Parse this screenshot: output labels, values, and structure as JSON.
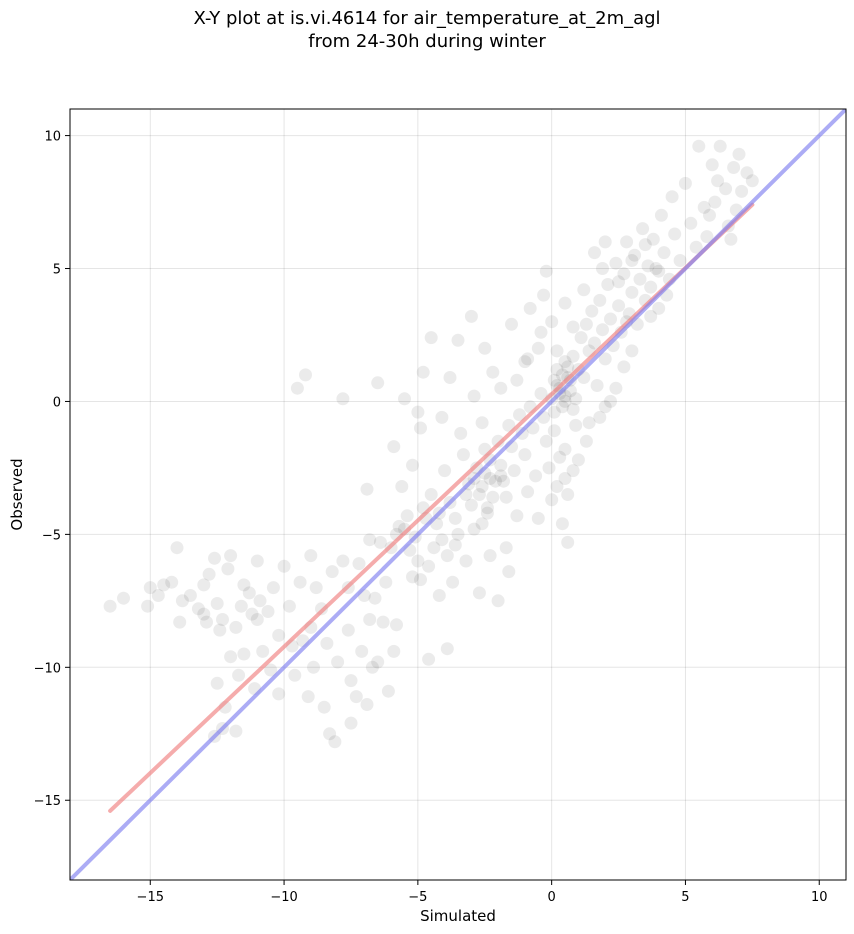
{
  "chart_data": {
    "type": "scatter",
    "title_line1": "X-Y plot at is.vi.4614 for air_temperature_at_2m_agl",
    "title_line2": "from 24-30h during winter",
    "xlabel": "Simulated",
    "ylabel": "Observed",
    "xlim": [
      -18,
      11
    ],
    "ylim": [
      -18,
      11
    ],
    "xticks": [
      -15,
      -10,
      -5,
      0,
      5,
      10
    ],
    "yticks": [
      -15,
      -10,
      -5,
      0,
      5,
      10
    ],
    "xtick_labels": [
      "−15",
      "−10",
      "−5",
      "0",
      "5",
      "10"
    ],
    "ytick_labels": [
      "−15",
      "−10",
      "−5",
      "0",
      "5",
      "10"
    ],
    "grid": true,
    "colors": {
      "points": "#000000",
      "regression_line": "#f08080",
      "identity_line": "#8080f0"
    },
    "regression_line": {
      "x": [
        -16.5,
        7.5
      ],
      "y": [
        -15.4,
        7.4
      ]
    },
    "identity_line": {
      "x": [
        -18,
        11
      ],
      "y": [
        -18,
        11
      ]
    },
    "points": [
      [
        -16.5,
        -7.7
      ],
      [
        -16.0,
        -7.4
      ],
      [
        -15.0,
        -7.0
      ],
      [
        -14.5,
        -6.9
      ],
      [
        -14.2,
        -6.8
      ],
      [
        -14.0,
        -5.5
      ],
      [
        -13.8,
        -7.5
      ],
      [
        -13.5,
        -7.3
      ],
      [
        -13.2,
        -7.8
      ],
      [
        -13.0,
        -8.0
      ],
      [
        -12.8,
        -6.5
      ],
      [
        -12.6,
        -5.9
      ],
      [
        -12.5,
        -7.6
      ],
      [
        -12.3,
        -8.2
      ],
      [
        -12.1,
        -6.3
      ],
      [
        -12.0,
        -5.8
      ],
      [
        -11.8,
        -8.5
      ],
      [
        -11.5,
        -6.9
      ],
      [
        -11.3,
        -7.2
      ],
      [
        -11.0,
        -6.0
      ],
      [
        -12.5,
        -10.6
      ],
      [
        -12.2,
        -11.5
      ],
      [
        -12.0,
        -9.6
      ],
      [
        -11.7,
        -10.3
      ],
      [
        -11.5,
        -9.5
      ],
      [
        -12.3,
        -12.3
      ],
      [
        -11.8,
        -12.4
      ],
      [
        -12.6,
        -12.6
      ],
      [
        -11.2,
        -8.0
      ],
      [
        -10.9,
        -7.5
      ],
      [
        -10.8,
        -9.4
      ],
      [
        -10.5,
        -10.1
      ],
      [
        -10.2,
        -8.8
      ],
      [
        -10.0,
        -6.2
      ],
      [
        -9.8,
        -7.7
      ],
      [
        -9.6,
        -10.3
      ],
      [
        -9.3,
        -9.0
      ],
      [
        -9.0,
        -5.8
      ],
      [
        -8.8,
        -7.0
      ],
      [
        -8.5,
        -11.5
      ],
      [
        -8.3,
        -12.5
      ],
      [
        -8.1,
        -12.8
      ],
      [
        -8.0,
        -9.8
      ],
      [
        -7.8,
        -6.0
      ],
      [
        -7.6,
        -8.6
      ],
      [
        -7.5,
        -10.5
      ],
      [
        -7.3,
        -11.1
      ],
      [
        -7.0,
        -7.3
      ],
      [
        -6.8,
        -8.2
      ],
      [
        -6.5,
        -9.8
      ],
      [
        -9.5,
        0.5
      ],
      [
        -9.2,
        1.0
      ],
      [
        -7.8,
        0.1
      ],
      [
        -6.5,
        0.7
      ],
      [
        -5.5,
        0.1
      ],
      [
        -5.0,
        -0.4
      ],
      [
        -4.8,
        1.1
      ],
      [
        -4.5,
        2.4
      ],
      [
        -3.5,
        2.3
      ],
      [
        -3.0,
        3.2
      ],
      [
        -2.5,
        2.0
      ],
      [
        -2.2,
        1.1
      ],
      [
        -1.5,
        2.9
      ],
      [
        -1.0,
        1.5
      ],
      [
        -0.8,
        3.5
      ],
      [
        -0.5,
        2.0
      ],
      [
        -0.3,
        4.0
      ],
      [
        0.0,
        3.0
      ],
      [
        -0.2,
        4.9
      ],
      [
        0.5,
        3.7
      ],
      [
        -6.0,
        -5.5
      ],
      [
        -5.8,
        -5.0
      ],
      [
        -5.5,
        -4.8
      ],
      [
        -5.3,
        -5.6
      ],
      [
        -5.0,
        -6.0
      ],
      [
        -4.8,
        -4.0
      ],
      [
        -4.5,
        -3.5
      ],
      [
        -4.3,
        -4.6
      ],
      [
        -4.1,
        -5.2
      ],
      [
        -4.0,
        -2.6
      ],
      [
        -3.8,
        -3.8
      ],
      [
        -3.6,
        -4.4
      ],
      [
        -3.5,
        -5.0
      ],
      [
        -3.3,
        -2.0
      ],
      [
        -3.1,
        -3.1
      ],
      [
        -3.0,
        -3.9
      ],
      [
        -2.9,
        -4.8
      ],
      [
        -2.8,
        -2.5
      ],
      [
        -2.6,
        -3.2
      ],
      [
        -2.5,
        -1.8
      ],
      [
        -2.4,
        -4.2
      ],
      [
        -2.3,
        -2.9
      ],
      [
        -2.2,
        -3.6
      ],
      [
        -2.0,
        -1.5
      ],
      [
        -1.9,
        -2.4
      ],
      [
        -1.8,
        -3.0
      ],
      [
        -1.7,
        -5.5
      ],
      [
        -1.6,
        -0.9
      ],
      [
        -1.5,
        -1.7
      ],
      [
        -1.4,
        -2.6
      ],
      [
        -1.3,
        -4.3
      ],
      [
        -1.2,
        -0.5
      ],
      [
        -1.1,
        -1.2
      ],
      [
        -1.0,
        -2.0
      ],
      [
        -0.9,
        -3.4
      ],
      [
        -0.8,
        -0.2
      ],
      [
        -0.7,
        -1.0
      ],
      [
        -0.6,
        -2.8
      ],
      [
        -0.5,
        -4.4
      ],
      [
        -0.4,
        0.3
      ],
      [
        -0.3,
        -0.6
      ],
      [
        -0.2,
        -1.5
      ],
      [
        -0.1,
        -2.5
      ],
      [
        0.0,
        0.1
      ],
      [
        0.1,
        -0.4
      ],
      [
        0.2,
        0.6
      ],
      [
        0.3,
        0.3
      ],
      [
        0.4,
        1.0
      ],
      [
        0.5,
        0.2
      ],
      [
        0.6,
        1.3
      ],
      [
        0.2,
        -3.2
      ],
      [
        0.4,
        -4.6
      ],
      [
        0.6,
        -5.3
      ],
      [
        0.6,
        -3.5
      ],
      [
        0.8,
        -2.6
      ],
      [
        0.3,
        -2.1
      ],
      [
        0.1,
        -1.1
      ],
      [
        0.0,
        -3.7
      ],
      [
        0.5,
        -1.8
      ],
      [
        0.9,
        -0.9
      ],
      [
        0.7,
        0.8
      ],
      [
        0.8,
        1.7
      ],
      [
        1.0,
        1.2
      ],
      [
        1.1,
        2.4
      ],
      [
        1.2,
        0.9
      ],
      [
        1.3,
        2.9
      ],
      [
        1.4,
        1.9
      ],
      [
        1.5,
        3.4
      ],
      [
        1.6,
        2.2
      ],
      [
        1.7,
        0.6
      ],
      [
        1.8,
        3.8
      ],
      [
        1.9,
        2.7
      ],
      [
        2.0,
        1.6
      ],
      [
        2.1,
        4.4
      ],
      [
        2.2,
        3.1
      ],
      [
        2.3,
        2.1
      ],
      [
        2.4,
        5.2
      ],
      [
        2.5,
        3.6
      ],
      [
        2.6,
        2.6
      ],
      [
        2.7,
        4.8
      ],
      [
        2.8,
        6.0
      ],
      [
        2.9,
        3.3
      ],
      [
        3.0,
        4.1
      ],
      [
        3.1,
        5.5
      ],
      [
        3.2,
        2.9
      ],
      [
        3.3,
        4.6
      ],
      [
        3.4,
        6.5
      ],
      [
        3.5,
        3.8
      ],
      [
        3.6,
        5.1
      ],
      [
        3.7,
        4.3
      ],
      [
        3.8,
        6.1
      ],
      [
        3.9,
        5.0
      ],
      [
        4.0,
        3.5
      ],
      [
        4.1,
        7.0
      ],
      [
        4.2,
        5.6
      ],
      [
        4.4,
        4.6
      ],
      [
        4.5,
        7.7
      ],
      [
        4.6,
        6.3
      ],
      [
        4.8,
        5.3
      ],
      [
        5.0,
        8.2
      ],
      [
        5.2,
        6.7
      ],
      [
        5.4,
        5.8
      ],
      [
        5.5,
        9.6
      ],
      [
        5.7,
        7.3
      ],
      [
        5.8,
        6.2
      ],
      [
        6.0,
        8.9
      ],
      [
        6.1,
        7.5
      ],
      [
        6.3,
        9.6
      ],
      [
        6.5,
        8.0
      ],
      [
        6.6,
        6.6
      ],
      [
        6.8,
        8.8
      ],
      [
        6.9,
        7.2
      ],
      [
        7.0,
        9.3
      ],
      [
        7.1,
        7.9
      ],
      [
        7.3,
        8.6
      ],
      [
        7.5,
        8.3
      ],
      [
        6.7,
        6.1
      ],
      [
        6.2,
        8.3
      ],
      [
        5.9,
        7.0
      ],
      [
        4.3,
        4.0
      ],
      [
        -6.2,
        -6.8
      ],
      [
        -6.8,
        -5.2
      ],
      [
        -7.2,
        -6.1
      ],
      [
        -7.6,
        -7.0
      ],
      [
        -8.2,
        -6.4
      ],
      [
        -8.6,
        -7.8
      ],
      [
        -9.0,
        -8.5
      ],
      [
        -9.4,
        -6.8
      ],
      [
        -10.4,
        -7.0
      ],
      [
        -11.0,
        -8.2
      ],
      [
        -5.9,
        -9.4
      ],
      [
        -6.3,
        -8.3
      ],
      [
        -6.6,
        -7.4
      ],
      [
        -5.2,
        -6.6
      ],
      [
        -4.6,
        -6.2
      ],
      [
        -4.2,
        -7.3
      ],
      [
        -3.7,
        -6.8
      ],
      [
        -3.2,
        -6.0
      ],
      [
        -2.7,
        -7.2
      ],
      [
        -3.9,
        -9.3
      ],
      [
        -4.6,
        -9.7
      ],
      [
        -2.0,
        -7.5
      ],
      [
        -1.6,
        -6.4
      ],
      [
        -2.3,
        -5.8
      ],
      [
        -5.6,
        -3.2
      ],
      [
        -6.9,
        -3.3
      ],
      [
        -5.9,
        -1.7
      ],
      [
        -5.2,
        -2.4
      ],
      [
        -4.9,
        -1.0
      ],
      [
        -4.1,
        -0.6
      ],
      [
        1.0,
        -2.2
      ],
      [
        0.5,
        -2.9
      ],
      [
        1.3,
        -1.5
      ],
      [
        1.8,
        -0.6
      ],
      [
        2.0,
        -0.2
      ],
      [
        2.4,
        0.5
      ],
      [
        2.7,
        1.3
      ],
      [
        3.0,
        1.9
      ],
      [
        2.2,
        0.0
      ],
      [
        1.4,
        -0.8
      ],
      [
        -1.9,
        0.5
      ],
      [
        -2.6,
        -0.8
      ],
      [
        -3.4,
        -1.2
      ],
      [
        -3.8,
        0.9
      ],
      [
        -2.9,
        0.2
      ],
      [
        -1.3,
        0.8
      ],
      [
        -0.9,
        1.6
      ],
      [
        -0.4,
        2.6
      ],
      [
        0.2,
        1.9
      ],
      [
        0.8,
        2.8
      ],
      [
        3.5,
        5.9
      ],
      [
        3.0,
        5.3
      ],
      [
        2.5,
        4.5
      ],
      [
        4.0,
        4.9
      ],
      [
        3.7,
        3.2
      ],
      [
        1.6,
        5.6
      ],
      [
        2.0,
        6.0
      ],
      [
        1.2,
        4.2
      ],
      [
        1.9,
        5.0
      ],
      [
        2.8,
        3.0
      ],
      [
        0.3,
        0.5
      ],
      [
        0.5,
        0.0
      ],
      [
        0.7,
        0.4
      ],
      [
        0.4,
        -0.2
      ],
      [
        0.6,
        0.9
      ],
      [
        0.2,
        1.2
      ],
      [
        0.9,
        0.1
      ],
      [
        0.1,
        0.8
      ],
      [
        0.8,
        -0.3
      ],
      [
        0.5,
        1.5
      ],
      [
        -2.5,
        -2.7
      ],
      [
        -2.7,
        -3.5
      ],
      [
        -2.3,
        -2.2
      ],
      [
        -2.1,
        -3.0
      ],
      [
        -2.9,
        -2.9
      ],
      [
        -2.4,
        -4.0
      ],
      [
        -1.9,
        -2.8
      ],
      [
        -3.2,
        -3.5
      ],
      [
        -2.6,
        -4.6
      ],
      [
        -1.7,
        -3.6
      ],
      [
        -4.2,
        -4.2
      ],
      [
        -4.4,
        -5.5
      ],
      [
        -4.7,
        -4.4
      ],
      [
        -3.9,
        -5.8
      ],
      [
        -5.1,
        -5.1
      ],
      [
        -5.4,
        -4.3
      ],
      [
        -3.6,
        -5.4
      ],
      [
        -4.9,
        -6.7
      ],
      [
        -5.7,
        -4.7
      ],
      [
        -6.4,
        -5.3
      ],
      [
        -13.0,
        -6.9
      ],
      [
        -13.9,
        -8.3
      ],
      [
        -14.7,
        -7.3
      ],
      [
        -15.1,
        -7.7
      ],
      [
        -12.9,
        -8.3
      ],
      [
        -12.4,
        -8.6
      ],
      [
        -11.6,
        -7.7
      ],
      [
        -10.6,
        -7.9
      ],
      [
        -9.7,
        -9.2
      ],
      [
        -8.9,
        -10.0
      ],
      [
        -10.2,
        -11.0
      ],
      [
        -11.1,
        -10.8
      ],
      [
        -9.1,
        -11.1
      ],
      [
        -8.4,
        -9.1
      ],
      [
        -7.1,
        -9.4
      ],
      [
        -6.7,
        -10.0
      ],
      [
        -6.1,
        -10.9
      ],
      [
        -7.5,
        -12.1
      ],
      [
        -6.9,
        -11.4
      ],
      [
        -5.8,
        -8.4
      ]
    ]
  }
}
